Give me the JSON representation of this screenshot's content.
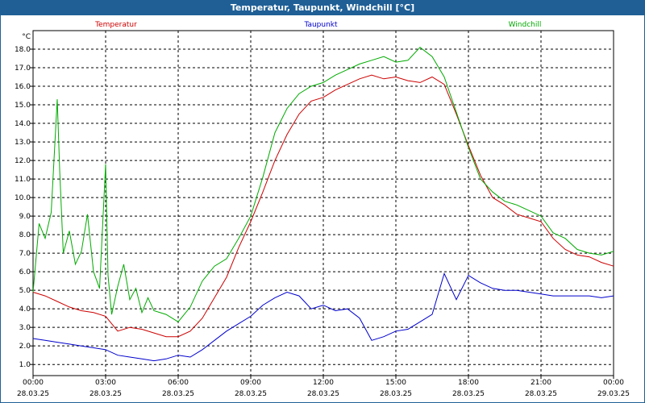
{
  "window": {
    "title": "Temperatur, Taupunkt, Windchill [°C]"
  },
  "chart_data": {
    "type": "line",
    "title": "Temperatur, Taupunkt, Windchill [°C]",
    "ylabel": "°C",
    "xlabel": "",
    "grid": true,
    "xlim": [
      0,
      24
    ],
    "ylim": [
      0.4,
      19.0
    ],
    "y_ticks": [
      1.0,
      2.0,
      3.0,
      4.0,
      5.0,
      6.0,
      7.0,
      8.0,
      9.0,
      10.0,
      11.0,
      12.0,
      13.0,
      14.0,
      15.0,
      16.0,
      17.0,
      18.0
    ],
    "x_ticks": [
      {
        "x": 0,
        "time": "00:00",
        "date": "28.03.25"
      },
      {
        "x": 3,
        "time": "03:00",
        "date": "28.03.25"
      },
      {
        "x": 6,
        "time": "06:00",
        "date": "28.03.25"
      },
      {
        "x": 9,
        "time": "09:00",
        "date": "28.03.25"
      },
      {
        "x": 12,
        "time": "12:00",
        "date": "28.03.25"
      },
      {
        "x": 15,
        "time": "15:00",
        "date": "28.03.25"
      },
      {
        "x": 18,
        "time": "18:00",
        "date": "28.03.25"
      },
      {
        "x": 21,
        "time": "21:00",
        "date": "28.03.25"
      },
      {
        "x": 24,
        "time": "00:00",
        "date": "29.03.25"
      }
    ],
    "series": [
      {
        "name": "Temperatur",
        "color": "#cc0000",
        "x": [
          0,
          0.5,
          1,
          1.5,
          2,
          2.5,
          3,
          3.5,
          4,
          4.5,
          5,
          5.5,
          6,
          6.5,
          7,
          7.5,
          8,
          8.5,
          9,
          9.5,
          10,
          10.5,
          11,
          11.5,
          12,
          12.5,
          13,
          13.5,
          14,
          14.5,
          15,
          15.5,
          16,
          16.5,
          17,
          17.5,
          18,
          18.5,
          19,
          19.5,
          20,
          20.5,
          21,
          21.5,
          22,
          22.5,
          23,
          23.5,
          24
        ],
        "values": [
          4.9,
          4.7,
          4.4,
          4.1,
          3.9,
          3.8,
          3.6,
          2.8,
          3.0,
          2.9,
          2.7,
          2.5,
          2.5,
          2.8,
          3.5,
          4.6,
          5.7,
          7.3,
          8.7,
          10.3,
          12.0,
          13.4,
          14.5,
          15.2,
          15.4,
          15.8,
          16.1,
          16.4,
          16.6,
          16.4,
          16.5,
          16.3,
          16.2,
          16.5,
          16.1,
          14.5,
          12.8,
          11.2,
          10.0,
          9.6,
          9.1,
          8.9,
          8.7,
          7.8,
          7.2,
          6.9,
          6.8,
          6.5,
          6.3
        ]
      },
      {
        "name": "Taupunkt",
        "color": "#0000cc",
        "x": [
          0,
          0.5,
          1,
          1.5,
          2,
          2.5,
          3,
          3.5,
          4,
          4.5,
          5,
          5.5,
          6,
          6.5,
          7,
          7.5,
          8,
          8.5,
          9,
          9.5,
          10,
          10.5,
          11,
          11.5,
          12,
          12.5,
          13,
          13.5,
          14,
          14.5,
          15,
          15.5,
          16,
          16.5,
          17,
          17.5,
          18,
          18.5,
          19,
          19.5,
          20,
          20.5,
          21,
          21.5,
          22,
          22.5,
          23,
          23.5,
          24
        ],
        "values": [
          2.4,
          2.3,
          2.2,
          2.1,
          2.0,
          1.9,
          1.8,
          1.5,
          1.4,
          1.3,
          1.2,
          1.3,
          1.5,
          1.4,
          1.8,
          2.3,
          2.8,
          3.2,
          3.6,
          4.2,
          4.6,
          4.9,
          4.7,
          4.0,
          4.2,
          3.9,
          4.0,
          3.5,
          2.3,
          2.5,
          2.8,
          2.9,
          3.3,
          3.7,
          5.9,
          4.5,
          5.8,
          5.4,
          5.1,
          5.0,
          5.0,
          4.9,
          4.8,
          4.7,
          4.7,
          4.7,
          4.7,
          4.6,
          4.7
        ]
      },
      {
        "name": "Windchill",
        "color": "#00aa00",
        "x": [
          0,
          0.25,
          0.5,
          0.75,
          1,
          1.1,
          1.25,
          1.5,
          1.75,
          2,
          2.25,
          2.5,
          2.75,
          3,
          3.1,
          3.25,
          3.5,
          3.75,
          4,
          4.25,
          4.5,
          4.75,
          5,
          5.5,
          6,
          6.5,
          7,
          7.5,
          8,
          8.5,
          9,
          9.5,
          10,
          10.5,
          11,
          11.5,
          12,
          12.5,
          13,
          13.5,
          14,
          14.5,
          15,
          15.5,
          16,
          16.5,
          17,
          17.5,
          18,
          18.5,
          19,
          19.5,
          20,
          20.5,
          21,
          21.5,
          22,
          22.5,
          23,
          23.5,
          24
        ],
        "values": [
          4.9,
          8.6,
          7.8,
          9.2,
          15.3,
          11.5,
          7.0,
          8.2,
          6.4,
          7.1,
          9.1,
          6.0,
          5.1,
          11.8,
          5.8,
          3.7,
          5.2,
          6.4,
          4.5,
          5.1,
          3.8,
          4.6,
          3.9,
          3.7,
          3.3,
          4.1,
          5.5,
          6.3,
          6.7,
          7.8,
          9.0,
          11.1,
          13.5,
          14.8,
          15.6,
          16.0,
          16.2,
          16.6,
          16.9,
          17.2,
          17.4,
          17.6,
          17.3,
          17.4,
          18.1,
          17.6,
          16.5,
          14.6,
          12.7,
          11.0,
          10.3,
          9.8,
          9.6,
          9.3,
          9.0,
          8.1,
          7.8,
          7.2,
          7.0,
          6.9,
          7.1
        ]
      }
    ]
  }
}
